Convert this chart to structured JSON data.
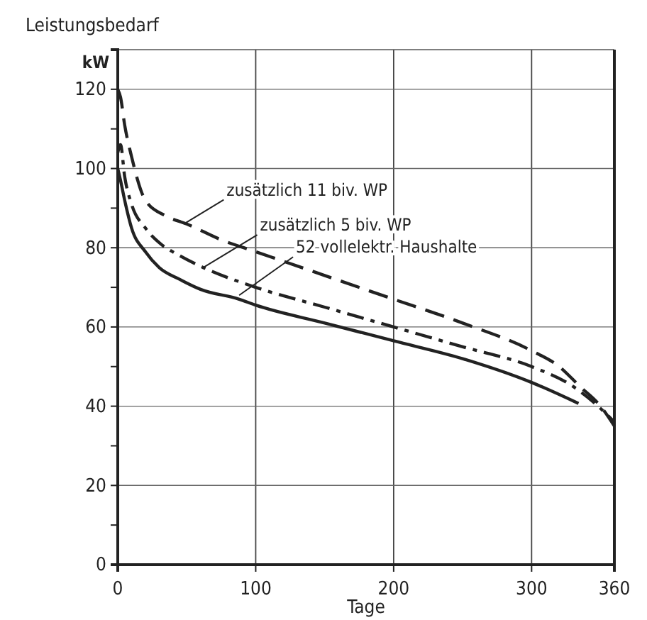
{
  "chart_data": {
    "type": "line",
    "ylabel": "Leistungsbedarf",
    "xlabel": "Tage",
    "xlim": [
      0,
      360
    ],
    "xticks": [
      0,
      100,
      200,
      300,
      360
    ],
    "ylim": [
      0,
      130
    ],
    "yticks": [
      0,
      {
        "value": 10,
        "label": null
      },
      20,
      {
        "value": 30,
        "label": null
      },
      40,
      {
        "value": 50,
        "label": null
      },
      60,
      {
        "value": 70,
        "label": null
      },
      80,
      {
        "value": 90,
        "label": null
      },
      100,
      {
        "value": 110,
        "label": null
      },
      120
    ],
    "grid": true,
    "series": [
      {
        "color": "#222222",
        "line_style": "dashed",
        "x": [
          0,
          2,
          5,
          10,
          20,
          35,
          50,
          75,
          100,
          150,
          200,
          250,
          300,
          320,
          335,
          350,
          360
        ],
        "values": [
          120,
          118,
          111,
          103,
          92,
          88,
          86,
          82,
          79,
          73,
          67,
          61,
          54,
          50,
          45,
          40,
          35
        ]
      },
      {
        "color": "#222222",
        "line_style": "dashdot",
        "x": [
          0,
          2,
          5,
          10,
          20,
          31,
          45,
          62,
          100,
          150,
          200,
          250,
          300,
          330,
          345,
          360
        ],
        "values": [
          104,
          106,
          98,
          91,
          85,
          81,
          78,
          75,
          70,
          65,
          60,
          55,
          50,
          45,
          41,
          36
        ]
      },
      {
        "color": "#222222",
        "line_style": "solid",
        "x": [
          0,
          2,
          5,
          10,
          20,
          30,
          45,
          60,
          88,
          100,
          150,
          200,
          250,
          300,
          334
        ],
        "values": [
          100,
          97,
          92,
          85,
          79,
          75,
          72,
          69.5,
          67,
          65.5,
          61,
          56.5,
          52,
          46,
          40.7
        ]
      }
    ],
    "annotations": [
      "kW",
      {
        "text": "zusätzlich 11 biv. WP",
        "x": 48,
        "y": 86
      },
      {
        "text": "zusätzlich 5 biv. WP",
        "x": 62,
        "y": 75
      },
      {
        "text": "52 vollelektr. Haushalte",
        "x": 88,
        "y": 68
      }
    ]
  }
}
